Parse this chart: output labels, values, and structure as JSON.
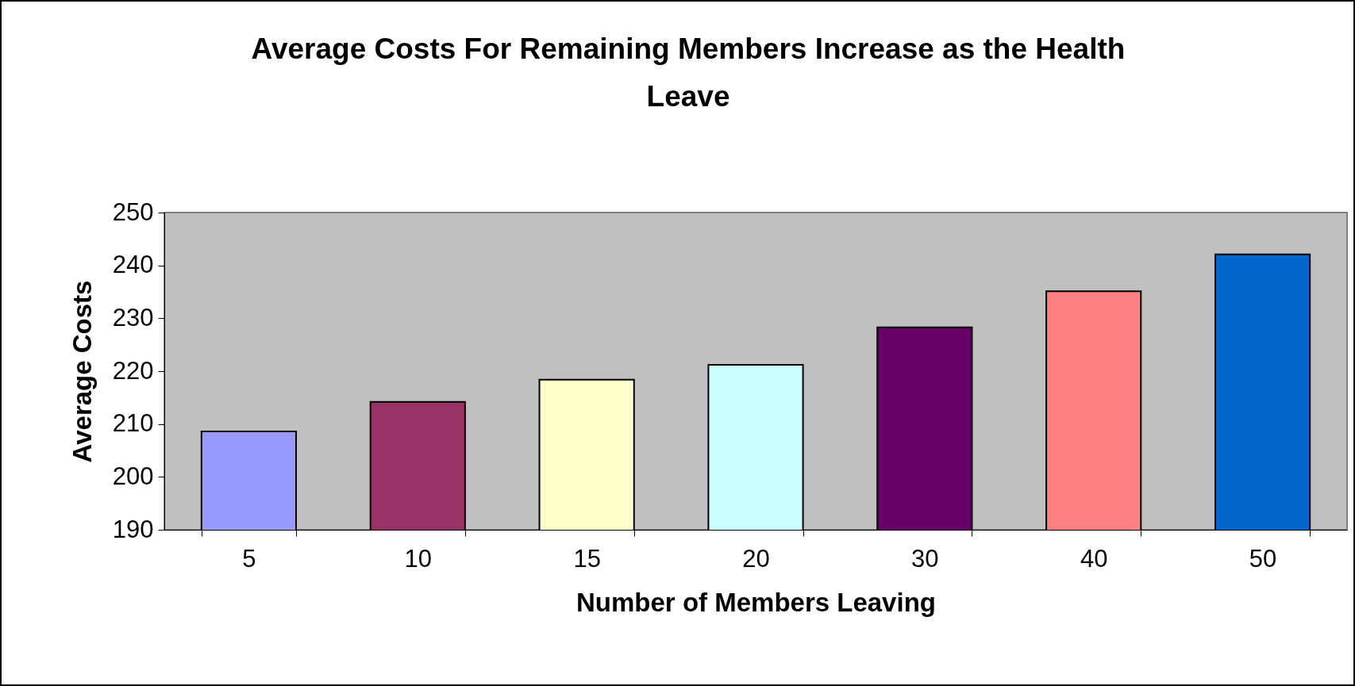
{
  "chart_data": {
    "type": "bar",
    "title": "Average Costs For Remaining Members Increase as the Health Leave",
    "xlabel": "Number of Members Leaving",
    "ylabel": "Average Costs",
    "categories": [
      "5",
      "10",
      "15",
      "20",
      "30",
      "40",
      "50"
    ],
    "values": [
      208.6,
      214.2,
      218.4,
      221.2,
      228.3,
      235.1,
      242.1
    ],
    "colors": [
      "#9999ff",
      "#993366",
      "#ffffcc",
      "#ccffff",
      "#660066",
      "#ff8080",
      "#0066cc"
    ],
    "ylim": [
      190,
      250
    ],
    "yticks": [
      190,
      200,
      210,
      220,
      230,
      240,
      250
    ],
    "grid": false
  }
}
